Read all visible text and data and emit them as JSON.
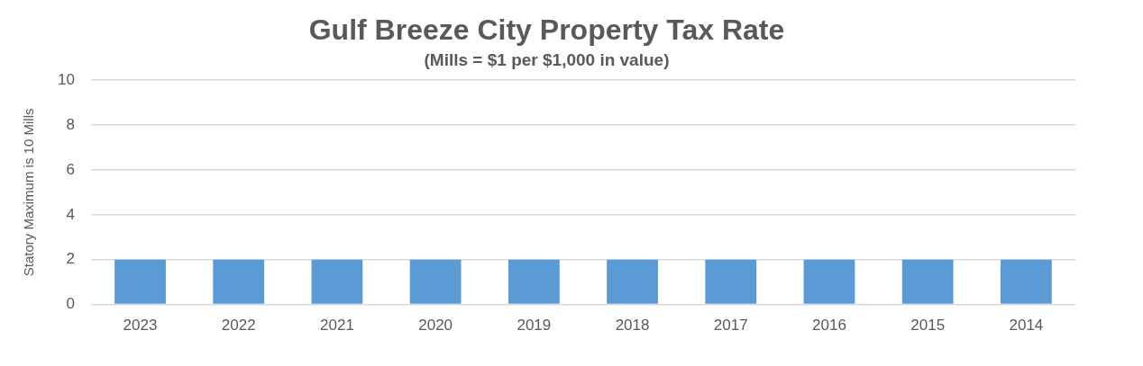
{
  "chart_data": {
    "type": "bar",
    "title": "Gulf Breeze City Property Tax Rate",
    "subtitle": "(Mills = $1 per $1,000 in value)",
    "ylabel": "Statory Maximum is 10 Mills",
    "categories": [
      "2023",
      "2022",
      "2021",
      "2020",
      "2019",
      "2018",
      "2017",
      "2016",
      "2015",
      "2014"
    ],
    "values": [
      2,
      2,
      2,
      2,
      2,
      2,
      2,
      2,
      2,
      2
    ],
    "color": "#5b9bd5",
    "ylim": [
      0,
      10
    ],
    "yticks": [
      0,
      2,
      4,
      6,
      8,
      10
    ],
    "grid": "y",
    "legend": false
  }
}
